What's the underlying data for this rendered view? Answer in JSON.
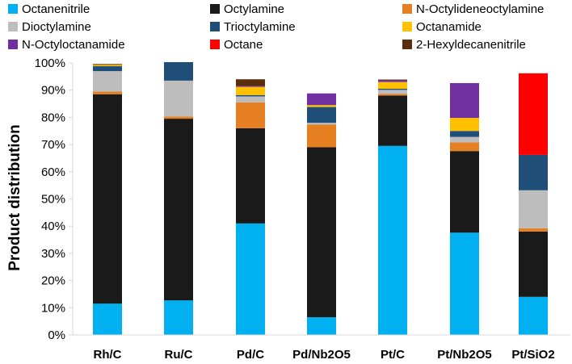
{
  "chart_data": {
    "type": "stacked-bar",
    "title": "",
    "xlabel": "",
    "ylabel": "Product distribution",
    "ylim": [
      0,
      100
    ],
    "y_ticks": [
      "0%",
      "10%",
      "20%",
      "30%",
      "40%",
      "50%",
      "60%",
      "70%",
      "80%",
      "90%",
      "100%"
    ],
    "grid": false,
    "legend_position": "top",
    "categories": [
      "Rh/C",
      "Ru/C",
      "Pd/C",
      "Pd/Nb2O5",
      "Pt/C",
      "Pt/Nb2O5",
      "Pt/SiO2"
    ],
    "series": [
      {
        "name": "Octanenitrile",
        "color": "#00B0F0",
        "values": [
          11.5,
          12.7,
          41.0,
          6.5,
          69.5,
          37.6,
          14.0
        ]
      },
      {
        "name": "Octylamine",
        "color": "#1A1A1A",
        "values": [
          77.0,
          66.8,
          35.0,
          62.5,
          18.5,
          30.0,
          24.0
        ]
      },
      {
        "name": "N-Octylideneoctylamine",
        "color": "#E67E22",
        "values": [
          1.0,
          0.8,
          9.5,
          8.3,
          0.6,
          3.2,
          1.2
        ]
      },
      {
        "name": "Dioctylamine",
        "color": "#BDBDBD",
        "values": [
          7.5,
          13.2,
          2.2,
          0.7,
          1.5,
          2.0,
          14.0
        ]
      },
      {
        "name": "Trioctylamine",
        "color": "#1F4E79",
        "values": [
          1.8,
          6.8,
          0.5,
          5.8,
          0.4,
          2.2,
          13.0
        ]
      },
      {
        "name": "Octanamide",
        "color": "#FFC000",
        "values": [
          0.5,
          0.0,
          3.0,
          0.7,
          2.5,
          4.8,
          0.0
        ]
      },
      {
        "name": "N-Octyloctanamide",
        "color": "#7030A0",
        "values": [
          0.0,
          0.0,
          0.3,
          4.3,
          0.6,
          12.8,
          0.0
        ]
      },
      {
        "name": "Octane",
        "color": "#FF0000",
        "values": [
          0.0,
          0.0,
          0.0,
          0.0,
          0.0,
          0.0,
          30.0
        ]
      },
      {
        "name": "2-Hexyldecanenitrile",
        "color": "#5A2D0C",
        "values": [
          0.3,
          0.0,
          2.5,
          0.0,
          0.3,
          0.0,
          0.0
        ]
      }
    ]
  }
}
